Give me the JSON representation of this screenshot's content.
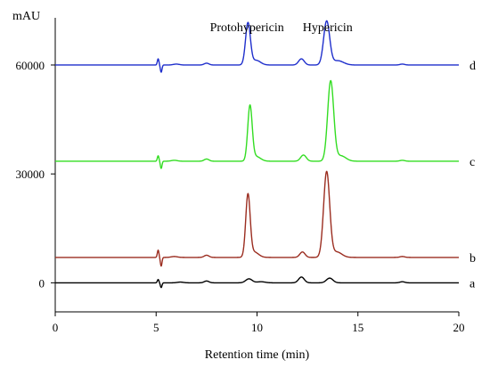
{
  "chart_data": {
    "type": "line",
    "title": "",
    "xlabel": "Retention time (min)",
    "ylabel": "mAU",
    "xlim": [
      0,
      20
    ],
    "ylim": [
      -8000,
      73000
    ],
    "x_ticks": [
      0,
      5,
      10,
      15,
      20
    ],
    "y_ticks": [
      0,
      30000,
      60000
    ],
    "y_tick_labels": [
      "0",
      "30000",
      "60000"
    ],
    "grid": false,
    "annotations": [
      {
        "text": "Protohypericin",
        "x": 9.5
      },
      {
        "text": "Hypericin",
        "x": 13.5
      }
    ],
    "series": [
      {
        "name": "a",
        "color": "#000000",
        "baseline": 0,
        "peaks": [
          {
            "x": 5.1,
            "h": 900,
            "w": 0.04
          },
          {
            "x": 5.25,
            "h": -1300,
            "w": 0.04
          },
          {
            "x": 6.2,
            "h": 200,
            "w": 0.15
          },
          {
            "x": 7.5,
            "h": 500,
            "w": 0.12
          },
          {
            "x": 9.6,
            "h": 1100,
            "w": 0.16
          },
          {
            "x": 10.2,
            "h": 300,
            "w": 0.2
          },
          {
            "x": 12.2,
            "h": 1600,
            "w": 0.14
          },
          {
            "x": 13.6,
            "h": 1300,
            "w": 0.16
          },
          {
            "x": 17.2,
            "h": 300,
            "w": 0.12
          }
        ]
      },
      {
        "name": "b",
        "color": "#9b2d20",
        "baseline": 7000,
        "peaks": [
          {
            "x": 5.1,
            "h": 2000,
            "w": 0.04
          },
          {
            "x": 5.25,
            "h": -2400,
            "w": 0.04
          },
          {
            "x": 5.9,
            "h": 250,
            "w": 0.15
          },
          {
            "x": 7.5,
            "h": 600,
            "w": 0.12
          },
          {
            "x": 9.55,
            "h": 17000,
            "w": 0.11
          },
          {
            "x": 9.85,
            "h": 1500,
            "w": 0.22
          },
          {
            "x": 12.25,
            "h": 1500,
            "w": 0.13
          },
          {
            "x": 13.45,
            "h": 23500,
            "w": 0.15
          },
          {
            "x": 13.95,
            "h": 1500,
            "w": 0.25
          },
          {
            "x": 17.2,
            "h": 250,
            "w": 0.12
          }
        ]
      },
      {
        "name": "c",
        "color": "#33dd22",
        "baseline": 33500,
        "peaks": [
          {
            "x": 5.1,
            "h": 1500,
            "w": 0.04
          },
          {
            "x": 5.25,
            "h": -2000,
            "w": 0.04
          },
          {
            "x": 5.9,
            "h": 250,
            "w": 0.15
          },
          {
            "x": 7.5,
            "h": 600,
            "w": 0.12
          },
          {
            "x": 9.65,
            "h": 15000,
            "w": 0.11
          },
          {
            "x": 9.95,
            "h": 1300,
            "w": 0.22
          },
          {
            "x": 12.3,
            "h": 1700,
            "w": 0.14
          },
          {
            "x": 13.65,
            "h": 22000,
            "w": 0.15
          },
          {
            "x": 14.15,
            "h": 1500,
            "w": 0.25
          },
          {
            "x": 17.2,
            "h": 250,
            "w": 0.12
          }
        ]
      },
      {
        "name": "d",
        "color": "#1f2fcc",
        "baseline": 60000,
        "peaks": [
          {
            "x": 5.1,
            "h": 1700,
            "w": 0.04
          },
          {
            "x": 5.25,
            "h": -2000,
            "w": 0.04
          },
          {
            "x": 6.0,
            "h": 250,
            "w": 0.15
          },
          {
            "x": 7.5,
            "h": 500,
            "w": 0.12
          },
          {
            "x": 9.55,
            "h": 11500,
            "w": 0.12
          },
          {
            "x": 9.95,
            "h": 1300,
            "w": 0.22
          },
          {
            "x": 12.2,
            "h": 1700,
            "w": 0.14
          },
          {
            "x": 13.45,
            "h": 12000,
            "w": 0.15
          },
          {
            "x": 14.0,
            "h": 1200,
            "w": 0.28
          },
          {
            "x": 17.2,
            "h": 250,
            "w": 0.12
          }
        ]
      }
    ]
  }
}
